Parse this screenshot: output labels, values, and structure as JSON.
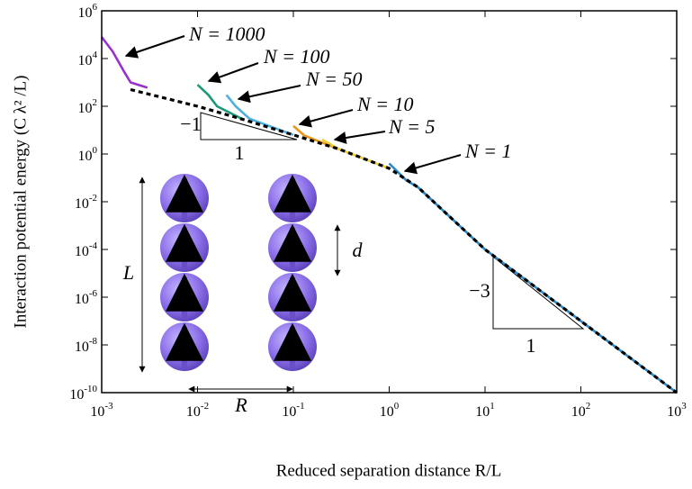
{
  "chart_data": {
    "type": "line",
    "xlabel": "Reduced separation distance R/L",
    "ylabel": "Interaction potential energy (C λ² /L)",
    "log_x": true,
    "log_y": true,
    "xlim": [
      0.001,
      1000
    ],
    "ylim": [
      1e-10,
      1000000
    ],
    "xticks": [
      {
        "value": 0.001,
        "label": "10",
        "exponent": "-3"
      },
      {
        "value": 0.01,
        "label": "10",
        "exponent": "-2"
      },
      {
        "value": 0.1,
        "label": "10",
        "exponent": "-1"
      },
      {
        "value": 1,
        "label": "10",
        "exponent": "0"
      },
      {
        "value": 10,
        "label": "10",
        "exponent": "1"
      },
      {
        "value": 100,
        "label": "10",
        "exponent": "2"
      },
      {
        "value": 1000,
        "label": "10",
        "exponent": "3"
      }
    ],
    "yticks": [
      {
        "value": 1e-10,
        "label": "10",
        "exponent": "-10"
      },
      {
        "value": 1e-08,
        "label": "10",
        "exponent": "-8"
      },
      {
        "value": 1e-06,
        "label": "10",
        "exponent": "-6"
      },
      {
        "value": 0.0001,
        "label": "10",
        "exponent": "-4"
      },
      {
        "value": 0.01,
        "label": "10",
        "exponent": "-2"
      },
      {
        "value": 1,
        "label": "10",
        "exponent": "0"
      },
      {
        "value": 100,
        "label": "10",
        "exponent": "2"
      },
      {
        "value": 10000,
        "label": "10",
        "exponent": "4"
      },
      {
        "value": 1000000,
        "label": "10",
        "exponent": "6"
      }
    ],
    "series": [
      {
        "name": "N = 1000",
        "color": "#9b30d0",
        "x": [
          0.001,
          0.0013,
          0.0017,
          0.002,
          0.003
        ],
        "values": [
          80000,
          20000,
          3000,
          1000,
          600
        ]
      },
      {
        "name": "N = 100",
        "color": "#1a9a78",
        "x": [
          0.01,
          0.013,
          0.016,
          0.03
        ],
        "values": [
          800,
          300,
          100,
          28
        ]
      },
      {
        "name": "N = 50",
        "color": "#4fb0e0",
        "x": [
          0.02,
          0.025,
          0.035,
          0.1
        ],
        "values": [
          300,
          100,
          30,
          6.3
        ]
      },
      {
        "name": "N = 10",
        "color": "#e8961c",
        "x": [
          0.1,
          0.13,
          0.2,
          0.3
        ],
        "values": [
          15,
          6,
          3,
          1.6
        ]
      },
      {
        "name": "N = 5",
        "color": "#f0d030",
        "x": [
          0.2,
          0.3,
          1
        ],
        "values": [
          4,
          1.6,
          0.25
        ]
      },
      {
        "name": "N = 1",
        "color": "#2a8ac8",
        "x": [
          1,
          1.5,
          2,
          10,
          100,
          1000
        ],
        "values": [
          0.4,
          0.08,
          0.04,
          0.0001,
          1e-07,
          1e-10
        ]
      },
      {
        "color": "#000000",
        "dashed": true,
        "x": [
          0.002,
          0.005,
          0.01,
          0.03,
          0.1,
          0.3,
          1,
          2,
          10,
          100,
          1000
        ],
        "values": [
          500,
          200,
          100,
          28,
          6.3,
          1.6,
          0.25,
          0.04,
          0.0001,
          1e-07,
          1e-10
        ]
      }
    ],
    "annotations": [
      "−1",
      "1",
      "−3",
      "1",
      "L",
      "d",
      "R"
    ]
  }
}
